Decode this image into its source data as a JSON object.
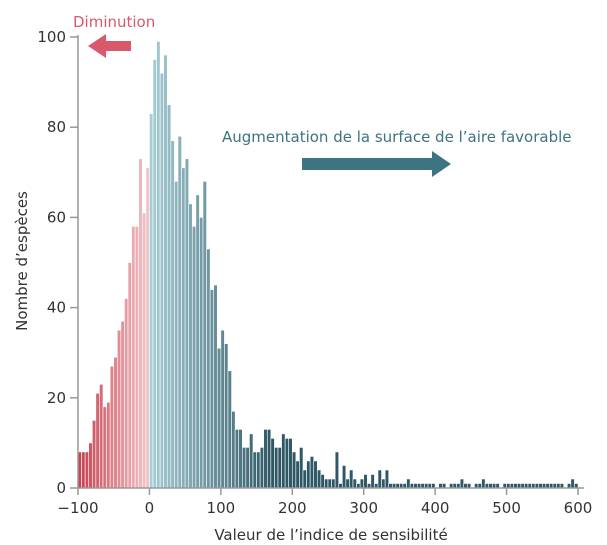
{
  "chart_data": {
    "type": "bar",
    "xlabel": "Valeur de l’indice de sensibilité",
    "ylabel": "Nombre d’espèces",
    "xlim": [
      -100,
      600
    ],
    "ylim": [
      0,
      100
    ],
    "xticks": [
      "−100",
      "0",
      "100",
      "200",
      "300",
      "400",
      "500",
      "600"
    ],
    "xtick_values": [
      -100,
      0,
      100,
      200,
      300,
      400,
      500,
      600
    ],
    "yticks": [
      "0",
      "20",
      "40",
      "60",
      "80",
      "100"
    ],
    "ytick_values": [
      0,
      20,
      40,
      60,
      80,
      100
    ],
    "bin_start": -100,
    "bin_width": 5,
    "values": [
      8,
      8,
      8,
      10,
      15,
      21,
      23,
      18,
      19,
      27,
      29,
      35,
      37,
      42,
      50,
      58,
      58,
      73,
      61,
      71,
      83,
      95,
      99,
      92,
      96,
      85,
      77,
      68,
      78,
      71,
      73,
      63,
      58,
      65,
      60,
      68,
      53,
      44,
      45,
      31,
      35,
      32,
      26,
      17,
      13,
      13,
      9,
      9,
      12,
      8,
      8,
      9,
      13,
      13,
      11,
      9,
      9,
      12,
      11,
      11,
      8,
      6,
      9,
      4,
      6,
      7,
      6,
      4,
      3,
      2,
      2,
      2,
      8,
      1,
      5,
      2,
      4,
      2,
      1,
      2,
      3,
      1,
      3,
      1,
      4,
      2,
      4,
      1,
      1,
      1,
      1,
      1,
      2,
      1,
      1,
      1,
      1,
      1,
      1,
      1,
      0,
      1,
      1,
      0,
      1,
      1,
      1,
      2,
      1,
      1,
      0,
      1,
      1,
      2,
      1,
      1,
      1,
      1,
      0,
      1,
      1,
      1,
      1,
      1,
      1,
      1,
      1,
      1,
      1,
      1,
      1,
      1,
      1,
      1,
      1,
      1,
      0,
      1,
      2,
      1
    ],
    "annotations": [
      {
        "text": "Diminution",
        "color": "#d9596a",
        "direction": "left"
      },
      {
        "text": "Augmentation de la surface de l’aire favorable",
        "color": "#3e7382",
        "direction": "right"
      }
    ],
    "colors": {
      "negative_dark": "#c8424f",
      "negative_light": "#f2c4c9",
      "positive_light": "#a7cdd5",
      "positive_dark": "#2f5866",
      "axis": "#999999",
      "bar_edge": "#ffffff"
    },
    "grid": false
  }
}
